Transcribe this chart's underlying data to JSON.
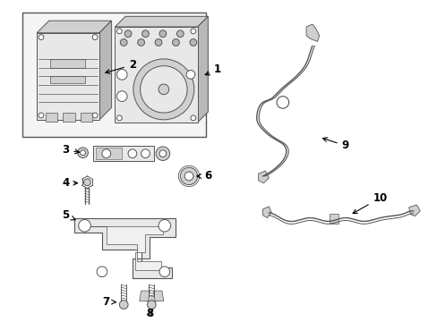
{
  "background_color": "#ffffff",
  "line_color": "#555555",
  "fig_width": 4.89,
  "fig_height": 3.6,
  "dpi": 100
}
